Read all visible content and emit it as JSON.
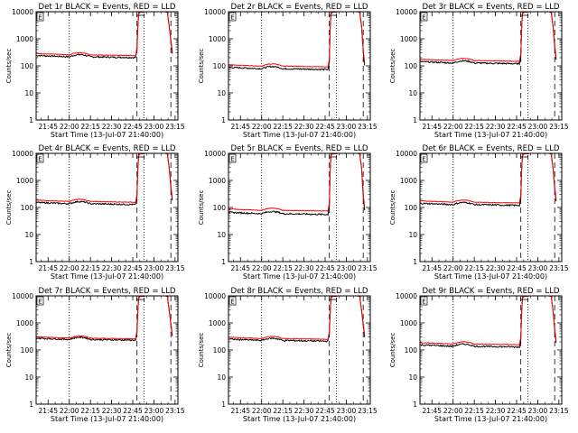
{
  "chart_data": {
    "type": "line",
    "layout": "3x3 grid",
    "xlabel": "Start Time (13-Jul-07 21:40:00)",
    "ylabel": "Counts/sec",
    "ylog": true,
    "ylim": [
      1,
      10000
    ],
    "yticks": [
      "1",
      "10",
      "100",
      "1000",
      "10000"
    ],
    "xlim": [
      -3.5,
      97
    ],
    "xtick_minutes": [
      5,
      20,
      35,
      50,
      65,
      80,
      95
    ],
    "xtick_labels": [
      "21:45",
      "22:00",
      "22:15",
      "22:30",
      "22:45",
      "23:00",
      "23:15"
    ],
    "legend_marker": "E",
    "colors": {
      "events": "#000000",
      "lld": "#ff0000",
      "axes": "#000000"
    },
    "markers": [
      {
        "minute": 20,
        "style": "dotted"
      },
      {
        "minute": 68,
        "style": "dashed"
      },
      {
        "minute": 73,
        "style": "dotted"
      },
      {
        "minute": 92,
        "style": "dashed"
      }
    ],
    "panels": [
      {
        "title": "Det 1r BLACK = Events, RED = LLD",
        "events_level": 220,
        "lld_level": 260
      },
      {
        "title": "Det 2r BLACK = Events, RED = LLD",
        "events_level": 80,
        "lld_level": 100
      },
      {
        "title": "Det 3r BLACK = Events, RED = LLD",
        "events_level": 130,
        "lld_level": 160
      },
      {
        "title": "Det 4r BLACK = Events, RED = LLD",
        "events_level": 140,
        "lld_level": 170
      },
      {
        "title": "Det 5r BLACK = Events, RED = LLD",
        "events_level": 60,
        "lld_level": 80
      },
      {
        "title": "Det 6r BLACK = Events, RED = LLD",
        "events_level": 130,
        "lld_level": 160
      },
      {
        "title": "Det 7r BLACK = Events, RED = LLD",
        "events_level": 250,
        "lld_level": 280
      },
      {
        "title": "Det 8r BLACK = Events, RED = LLD",
        "events_level": 230,
        "lld_level": 270
      },
      {
        "title": "Det 9r BLACK = Events, RED = LLD",
        "events_level": 140,
        "lld_level": 170
      }
    ]
  }
}
